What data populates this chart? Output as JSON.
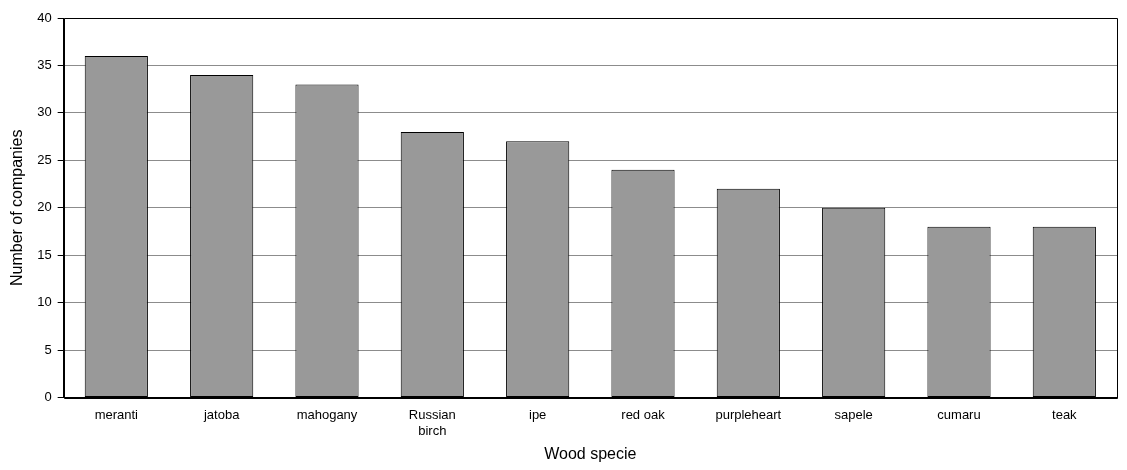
{
  "chart_data": {
    "type": "bar",
    "xlabel": "Wood specie",
    "ylabel": "Number of companies",
    "categories": [
      "meranti",
      "jatoba",
      "mahogany",
      "Russian birch",
      "ipe",
      "red oak",
      "purpleheart",
      "sapele",
      "cumaru",
      "teak"
    ],
    "values": [
      36,
      34,
      33,
      28,
      27,
      24,
      22,
      20,
      18,
      18
    ],
    "color": "#999999",
    "ylim": [
      0,
      40
    ],
    "yticks": [
      0,
      5,
      10,
      15,
      20,
      25,
      30,
      35,
      40
    ],
    "grid": "y",
    "legend": false
  }
}
